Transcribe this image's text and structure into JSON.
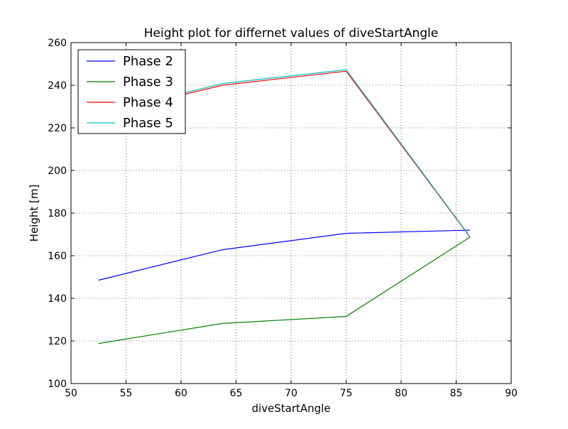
{
  "chart_data": {
    "type": "line",
    "title": "Height plot for differnet values of diveStartAngle",
    "xlabel": "diveStartAngle",
    "ylabel": "Height [m]",
    "xlim": [
      50,
      90
    ],
    "ylim": [
      100,
      260
    ],
    "xticks": [
      50,
      55,
      60,
      65,
      70,
      75,
      80,
      85,
      90
    ],
    "yticks": [
      100,
      120,
      140,
      160,
      180,
      200,
      220,
      240,
      260
    ],
    "x": [
      52.5,
      63.75,
      75,
      86.25
    ],
    "grid": true,
    "legend_position": "top-left",
    "series": [
      {
        "name": "Phase 2",
        "color": "#0000ff",
        "values": [
          148.5,
          162.8,
          170.5,
          172.0
        ]
      },
      {
        "name": "Phase 3",
        "color": "#008000",
        "values": [
          118.8,
          128.2,
          131.5,
          168.7
        ]
      },
      {
        "name": "Phase 4",
        "color": "#ff0000",
        "values": [
          226.0,
          240.0,
          246.6,
          168.8
        ]
      },
      {
        "name": "Phase 5",
        "color": "#00bfbf",
        "values": [
          226.5,
          240.8,
          247.3,
          169.0
        ]
      }
    ]
  }
}
